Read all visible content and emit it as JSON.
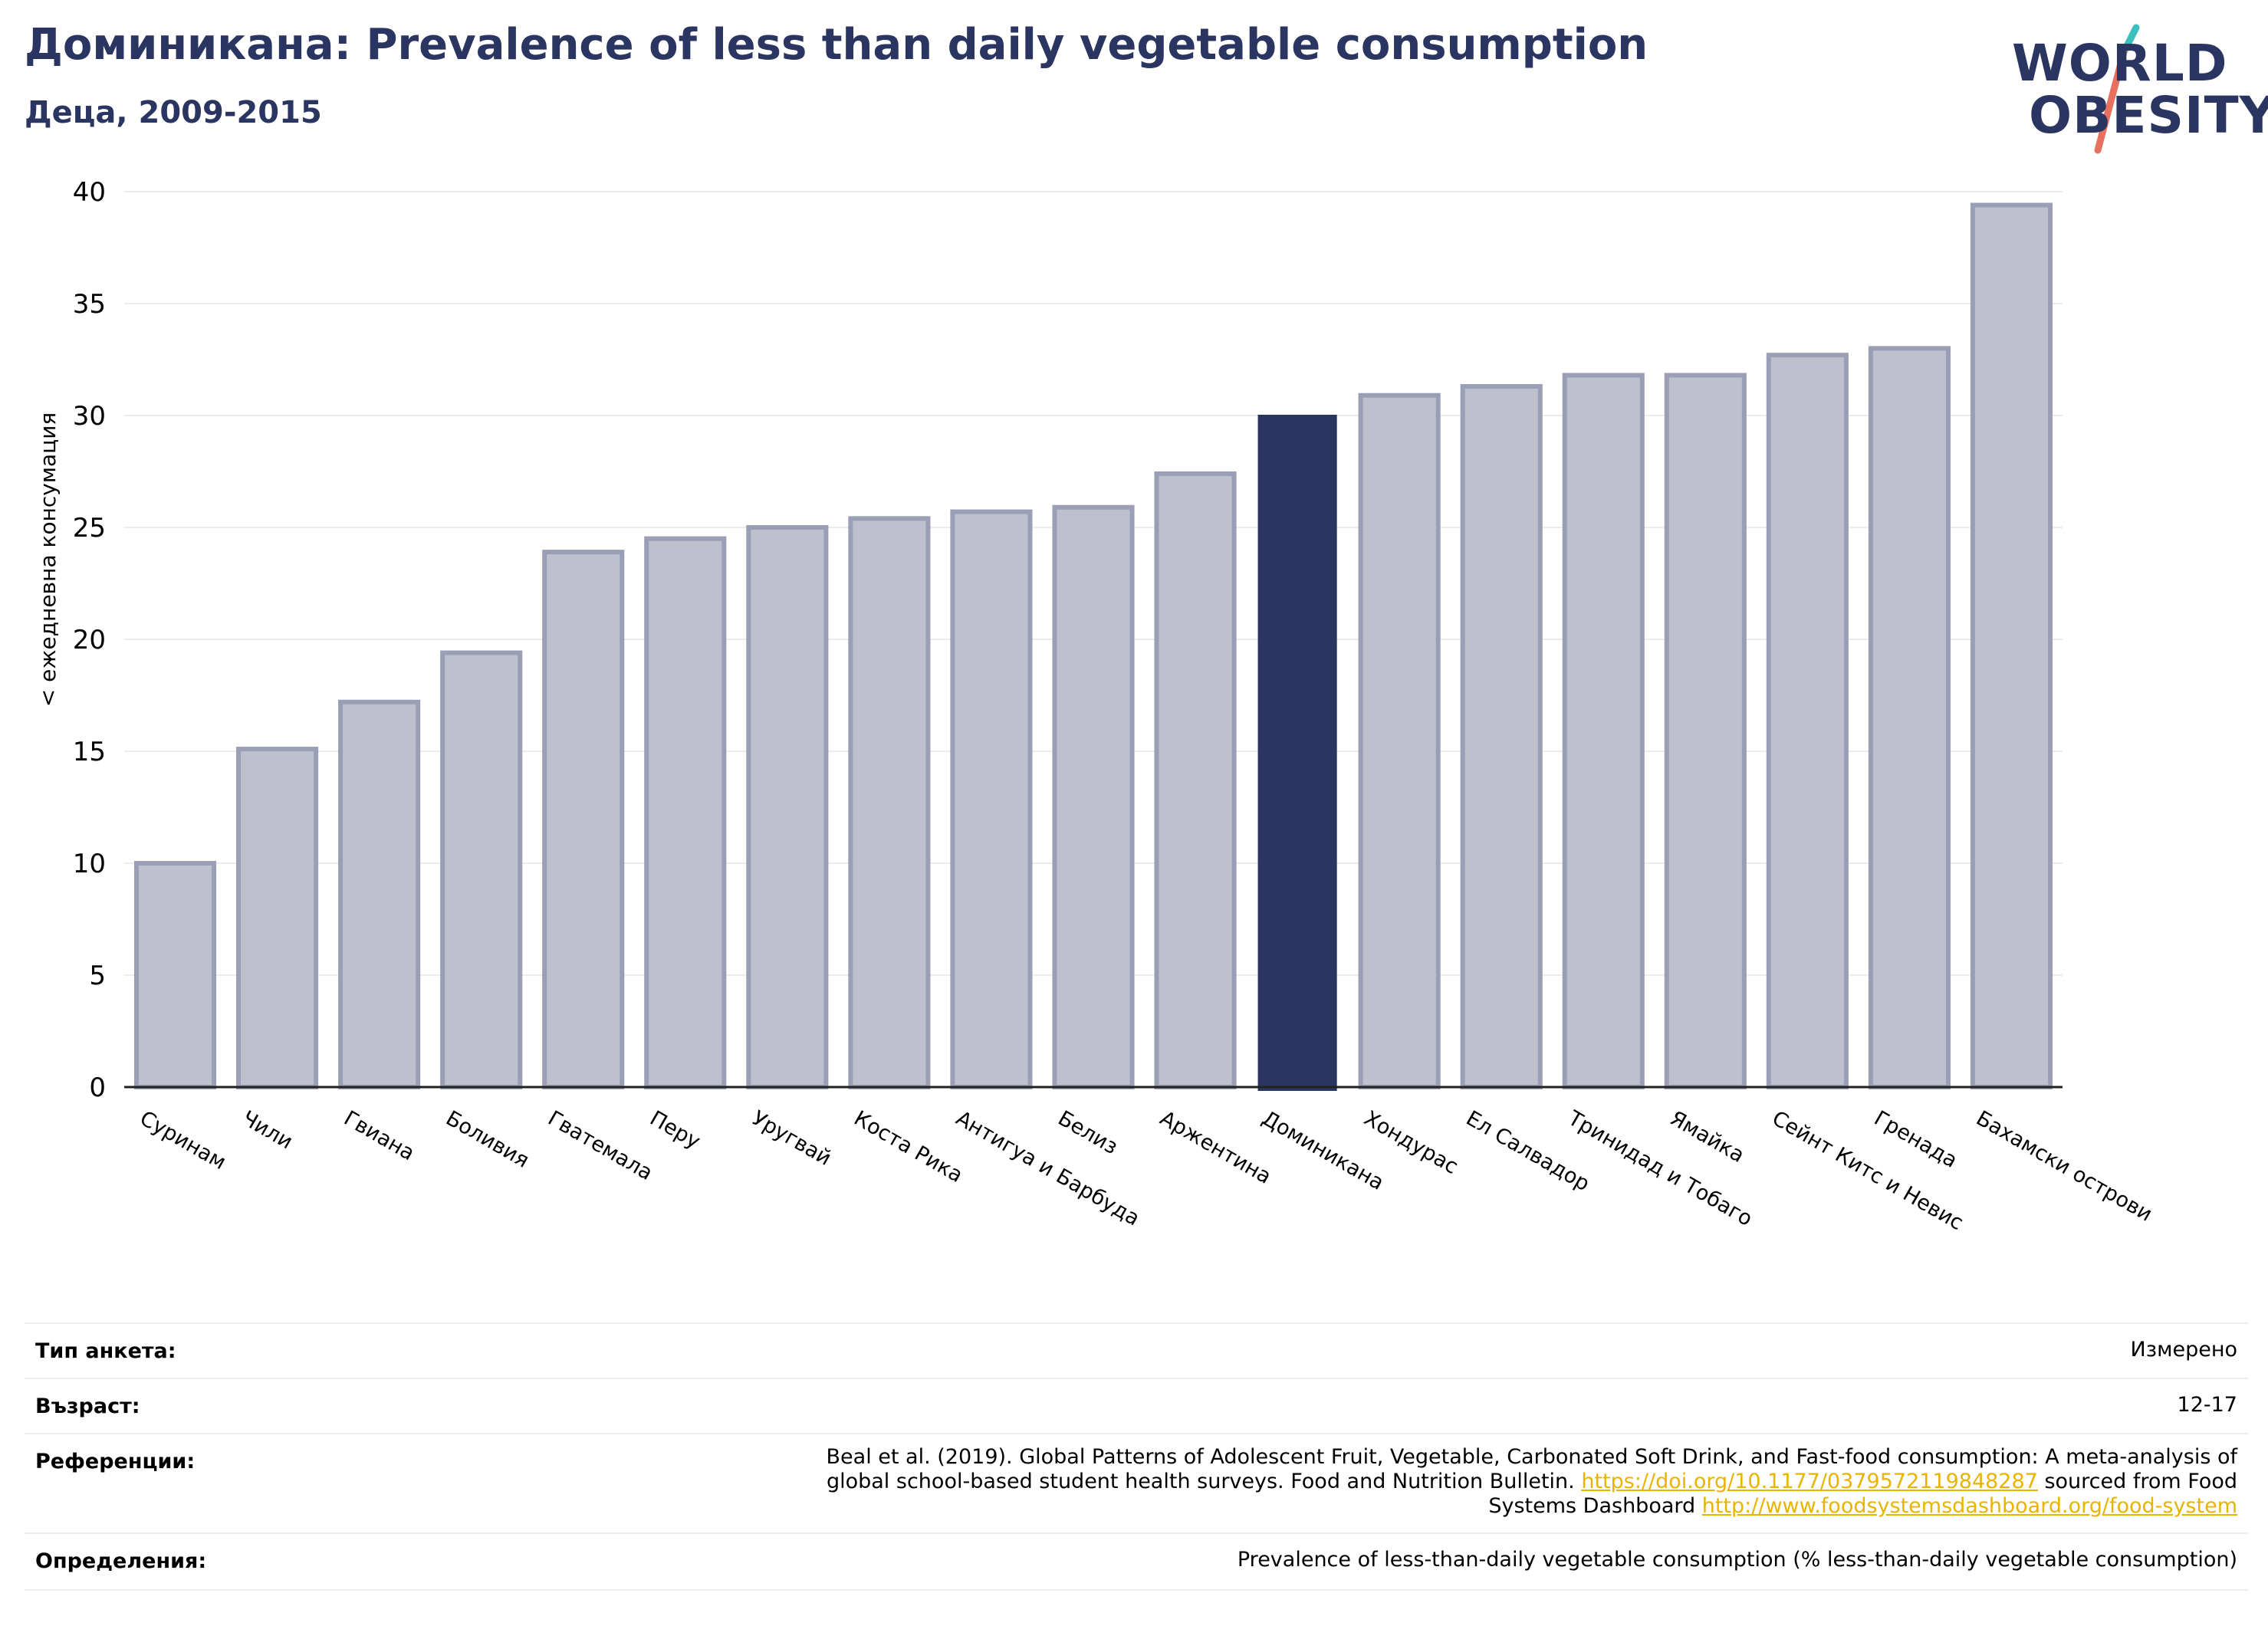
{
  "header": {
    "title": "Доминикана: Prevalence of less than daily vegetable consumption",
    "subtitle": "Деца, 2009-2015"
  },
  "logo": {
    "line1": "WORLD",
    "line2": "OBESITY",
    "alt_icon": "world-obesity-logo"
  },
  "colors": {
    "highlight": "#2a3561",
    "bar_fill": "#bec1cd",
    "bar_stroke": "#9a9fb5",
    "logo_teal": "#3bbfbf",
    "logo_coral": "#e8705e",
    "link": "#e8b400"
  },
  "chart_data": {
    "type": "bar",
    "title": "Доминикана: Prevalence of less than daily vegetable consumption",
    "subtitle": "Деца, 2009-2015",
    "xlabel": "",
    "ylabel": "< ежедневна консумация",
    "ylim": [
      0,
      40
    ],
    "yticks": [
      0,
      5,
      10,
      15,
      20,
      25,
      30,
      35,
      40
    ],
    "grid": true,
    "highlight": "Доминикана",
    "categories": [
      "Суринам",
      "Чили",
      "Гвиана",
      "Боливия",
      "Гватемала",
      "Перу",
      "Уругвай",
      "Коста Рика",
      "Антигуа и Барбуда",
      "Белиз",
      "Аржентина",
      "Доминикана",
      "Хондурас",
      "Ел Салвадор",
      "Тринидад и Тобаго",
      "Ямайка",
      "Сейнт Китс и Невис",
      "Гренада",
      "Бахамски острови"
    ],
    "values": [
      10.0,
      15.1,
      17.2,
      19.4,
      23.9,
      24.5,
      25.0,
      25.4,
      25.7,
      25.9,
      27.4,
      30.0,
      30.9,
      31.3,
      31.8,
      31.8,
      32.7,
      33.0,
      39.4
    ]
  },
  "info": {
    "survey_type": {
      "label": "Тип анкета:",
      "value": "Измерено"
    },
    "age": {
      "label": "Възраст:",
      "value": "12-17"
    },
    "references": {
      "label": "Референции:",
      "line1": "Beal et al. (2019). Global Patterns of Adolescent Fruit, Vegetable, Carbonated Soft Drink, and Fast-food consumption: A meta-analysis of",
      "line2_pre": "global school-based student health surveys. Food and Nutrition Bulletin. ",
      "link1": "https://doi.org/10.1177/0379572119848287",
      "line2_post": " sourced from Food",
      "line3_pre": "Systems Dashboard ",
      "link2": "http://www.foodsystemsdashboard.org/food-system"
    },
    "definitions": {
      "label": "Определения:",
      "value": "Prevalence of less-than-daily vegetable consumption (% less-than-daily vegetable consumption)"
    }
  }
}
